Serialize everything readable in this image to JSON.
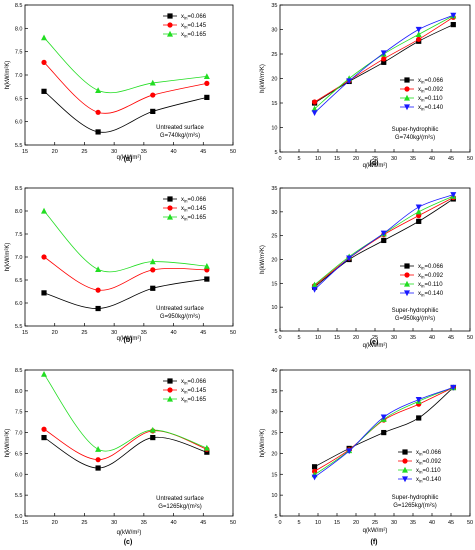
{
  "colors": {
    "black": "#000000",
    "red": "#ff0000",
    "green": "#22dd22",
    "blue": "#1a1aff"
  },
  "chart_data": [
    {
      "panel_label": "(a)",
      "type": "line",
      "xlabel": "q(kW/m²)",
      "ylabel": "h(kW/m²K)",
      "xlim": [
        15,
        50
      ],
      "ylim": [
        5.5,
        8.5
      ],
      "xticks": [
        "15",
        "20",
        "25",
        "30",
        "35",
        "40",
        "45",
        "50"
      ],
      "yticks": [
        "5.5",
        "6.0",
        "6.5",
        "7.0",
        "7.5",
        "8.0",
        "8.5"
      ],
      "annotation": [
        "Untreated surface",
        "G=740kg/(m²s)"
      ],
      "legend_position": "top-right",
      "series": [
        {
          "name": "x_in=0.066",
          "color": "#000000",
          "marker": "square",
          "x": [
            18.2,
            27.3,
            36.5,
            45.6
          ],
          "y": [
            6.65,
            5.78,
            6.22,
            6.52
          ]
        },
        {
          "name": "x_in=0.145",
          "color": "#ff0000",
          "marker": "circle",
          "x": [
            18.2,
            27.3,
            36.5,
            45.6
          ],
          "y": [
            7.27,
            6.2,
            6.57,
            6.82
          ]
        },
        {
          "name": "x_in=0.165",
          "color": "#22dd22",
          "marker": "triangle-up",
          "x": [
            18.2,
            27.3,
            36.5,
            45.6
          ],
          "y": [
            7.8,
            6.67,
            6.83,
            6.97
          ]
        }
      ]
    },
    {
      "panel_label": "(b)",
      "type": "line",
      "xlabel": "q(kW/m²)",
      "ylabel": "h(kW/m²K)",
      "xlim": [
        15,
        50
      ],
      "ylim": [
        5.5,
        8.5
      ],
      "xticks": [
        "15",
        "20",
        "25",
        "30",
        "35",
        "40",
        "45",
        "50"
      ],
      "yticks": [
        "5.5",
        "6.0",
        "6.5",
        "7.0",
        "7.5",
        "8.0",
        "8.5"
      ],
      "annotation": [
        "Untreated surface",
        "G=950kg/(m²s)"
      ],
      "legend_position": "top-right",
      "series": [
        {
          "name": "x_in=0.066",
          "color": "#000000",
          "marker": "square",
          "x": [
            18.2,
            27.3,
            36.5,
            45.6
          ],
          "y": [
            6.22,
            5.88,
            6.32,
            6.52
          ]
        },
        {
          "name": "x_in=0.145",
          "color": "#ff0000",
          "marker": "circle",
          "x": [
            18.2,
            27.3,
            36.5,
            45.6
          ],
          "y": [
            7.0,
            6.28,
            6.72,
            6.72
          ]
        },
        {
          "name": "x_in=0.165",
          "color": "#22dd22",
          "marker": "triangle-up",
          "x": [
            18.2,
            27.3,
            36.5,
            45.6
          ],
          "y": [
            8.0,
            6.73,
            6.9,
            6.8
          ]
        }
      ]
    },
    {
      "panel_label": "(c)",
      "type": "line",
      "xlabel": "q(kW/m²)",
      "ylabel": "h(kW/m²K)",
      "xlim": [
        15,
        50
      ],
      "ylim": [
        5.0,
        8.5
      ],
      "xticks": [
        "15",
        "20",
        "25",
        "30",
        "35",
        "40",
        "45",
        "50"
      ],
      "yticks": [
        "5.0",
        "5.5",
        "6.0",
        "6.5",
        "7.0",
        "7.5",
        "8.0",
        "8.5"
      ],
      "annotation": [
        "Untreated surface",
        "G=1265kg/(m²s)"
      ],
      "legend_position": "top-right",
      "series": [
        {
          "name": "x_in=0.066",
          "color": "#000000",
          "marker": "square",
          "x": [
            18.2,
            27.3,
            36.5,
            45.6
          ],
          "y": [
            6.88,
            6.15,
            6.88,
            6.53
          ]
        },
        {
          "name": "x_in=0.145",
          "color": "#ff0000",
          "marker": "circle",
          "x": [
            18.2,
            27.3,
            36.5,
            45.6
          ],
          "y": [
            7.08,
            6.35,
            7.04,
            6.6
          ]
        },
        {
          "name": "x_in=0.165",
          "color": "#22dd22",
          "marker": "triangle-up",
          "x": [
            18.2,
            27.3,
            36.5,
            45.6
          ],
          "y": [
            8.4,
            6.6,
            7.06,
            6.63
          ]
        }
      ]
    },
    {
      "panel_label": "(d)",
      "type": "line",
      "xlabel": "q(kW/m²)",
      "ylabel": "h(kW/m²K)",
      "xlim": [
        0,
        50
      ],
      "ylim": [
        5,
        35
      ],
      "xticks": [
        "0",
        "5",
        "10",
        "15",
        "20",
        "25",
        "30",
        "35",
        "40",
        "45",
        "50"
      ],
      "yticks": [
        "5",
        "10",
        "15",
        "20",
        "25",
        "30",
        "35"
      ],
      "annotation": [
        "Super-hydrophilic",
        "G=740kg/(m²s)"
      ],
      "legend_position": "center-right",
      "series": [
        {
          "name": "x_in=0.066",
          "color": "#000000",
          "marker": "square",
          "x": [
            9.1,
            18.2,
            27.3,
            36.5,
            45.6
          ],
          "y": [
            15.0,
            19.4,
            23.3,
            27.6,
            31.0
          ]
        },
        {
          "name": "x_in=0.092",
          "color": "#ff0000",
          "marker": "circle",
          "x": [
            9.1,
            18.2,
            27.3,
            36.5,
            45.6
          ],
          "y": [
            15.2,
            19.6,
            24.0,
            28.0,
            32.5
          ]
        },
        {
          "name": "x_in=0.110",
          "color": "#22dd22",
          "marker": "triangle-up",
          "x": [
            9.1,
            18.2,
            27.3,
            36.5,
            45.6
          ],
          "y": [
            13.8,
            20.0,
            25.0,
            29.0,
            32.8
          ]
        },
        {
          "name": "x_in=0.140",
          "color": "#1a1aff",
          "marker": "triangle-down",
          "x": [
            9.1,
            18.2,
            27.3,
            36.5,
            45.6
          ],
          "y": [
            13.0,
            19.5,
            25.2,
            30.0,
            32.9
          ]
        }
      ]
    },
    {
      "panel_label": "(e)",
      "type": "line",
      "xlabel": "q(kW/m²)",
      "ylabel": "h(kW/m²K)",
      "xlim": [
        0,
        50
      ],
      "ylim": [
        5,
        35
      ],
      "xticks": [
        "0",
        "5",
        "10",
        "15",
        "20",
        "25",
        "30",
        "35",
        "40",
        "45",
        "50"
      ],
      "yticks": [
        "5",
        "10",
        "15",
        "20",
        "25",
        "30",
        "35"
      ],
      "annotation": [
        "Super-hydrophilic",
        "G=950kg/(m²s)"
      ],
      "legend_position": "center-right",
      "series": [
        {
          "name": "x_in=0.066",
          "color": "#000000",
          "marker": "square",
          "x": [
            9.1,
            18.2,
            27.3,
            36.5,
            45.6
          ],
          "y": [
            14.2,
            20.0,
            24.0,
            28.0,
            32.7
          ]
        },
        {
          "name": "x_in=0.092",
          "color": "#ff0000",
          "marker": "circle",
          "x": [
            9.1,
            18.2,
            27.3,
            36.5,
            45.6
          ],
          "y": [
            14.5,
            20.3,
            25.2,
            29.2,
            33.0
          ]
        },
        {
          "name": "x_in=0.110",
          "color": "#22dd22",
          "marker": "triangle-up",
          "x": [
            9.1,
            18.2,
            27.3,
            36.5,
            45.6
          ],
          "y": [
            14.7,
            20.6,
            25.4,
            30.0,
            33.3
          ]
        },
        {
          "name": "x_in=0.140",
          "color": "#1a1aff",
          "marker": "triangle-down",
          "x": [
            9.1,
            18.2,
            27.3,
            36.5,
            45.6
          ],
          "y": [
            13.7,
            20.3,
            25.5,
            31.0,
            33.6
          ]
        }
      ]
    },
    {
      "panel_label": "(f)",
      "type": "line",
      "xlabel": "q(kW/m²)",
      "ylabel": "h(kW/m²K)",
      "xlim": [
        0,
        50
      ],
      "ylim": [
        5,
        40
      ],
      "xticks": [
        "0",
        "5",
        "10",
        "15",
        "20",
        "25",
        "30",
        "35",
        "40",
        "45",
        "50"
      ],
      "yticks": [
        "5",
        "10",
        "15",
        "20",
        "25",
        "30",
        "35",
        "40"
      ],
      "annotation": [
        "Super-hydrophilic",
        "G=1265kg/(m²s)"
      ],
      "legend_position": "bottom-right",
      "series": [
        {
          "name": "x_in=0.066",
          "color": "#000000",
          "marker": "square",
          "x": [
            9.1,
            18.2,
            27.3,
            36.5,
            45.6
          ],
          "y": [
            16.8,
            21.2,
            25.0,
            28.5,
            35.8
          ]
        },
        {
          "name": "x_in=0.092",
          "color": "#ff0000",
          "marker": "circle",
          "x": [
            9.1,
            18.2,
            27.3,
            36.5,
            45.6
          ],
          "y": [
            15.7,
            20.9,
            28.0,
            31.8,
            35.8
          ]
        },
        {
          "name": "x_in=0.110",
          "color": "#22dd22",
          "marker": "triangle-up",
          "x": [
            9.1,
            18.2,
            27.3,
            36.5,
            45.6
          ],
          "y": [
            14.9,
            20.7,
            28.2,
            32.5,
            35.8
          ]
        },
        {
          "name": "x_in=0.140",
          "color": "#1a1aff",
          "marker": "triangle-down",
          "x": [
            9.1,
            18.2,
            27.3,
            36.5,
            45.6
          ],
          "y": [
            14.3,
            20.6,
            28.7,
            32.9,
            35.8
          ]
        }
      ]
    }
  ]
}
